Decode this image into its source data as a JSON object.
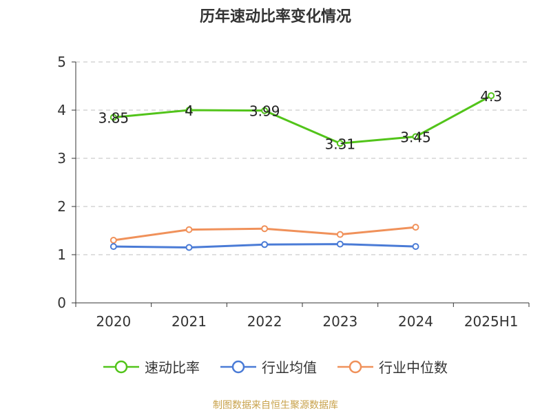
{
  "title": "历年速动比率变化情况",
  "source": "制图数据来自恒生聚源数据库",
  "colors": {
    "series_0": "#52c41a",
    "series_1": "#4a7bd6",
    "series_2": "#f0915a",
    "grid": "#cccccc",
    "axis": "#333333",
    "text": "#333333",
    "source": "#c8a24b"
  },
  "chart_data": {
    "type": "line",
    "title": "历年速动比率变化情况",
    "xlabel": "",
    "ylabel": "",
    "categories": [
      "2020",
      "2021",
      "2022",
      "2023",
      "2024",
      "2025H1"
    ],
    "ylim": [
      0,
      5
    ],
    "yticks": [
      0,
      1,
      2,
      3,
      4,
      5
    ],
    "grid": true,
    "legend_position": "bottom",
    "series": [
      {
        "name": "速动比率",
        "values": [
          3.85,
          4,
          3.99,
          3.31,
          3.45,
          4.3
        ],
        "labels": [
          "3.85",
          "4",
          "3.99",
          "3.31",
          "3.45",
          "4.3"
        ]
      },
      {
        "name": "行业均值",
        "values": [
          1.17,
          1.15,
          1.21,
          1.22,
          1.17,
          null
        ]
      },
      {
        "name": "行业中位数",
        "values": [
          1.3,
          1.52,
          1.54,
          1.42,
          1.57,
          null
        ]
      }
    ]
  }
}
